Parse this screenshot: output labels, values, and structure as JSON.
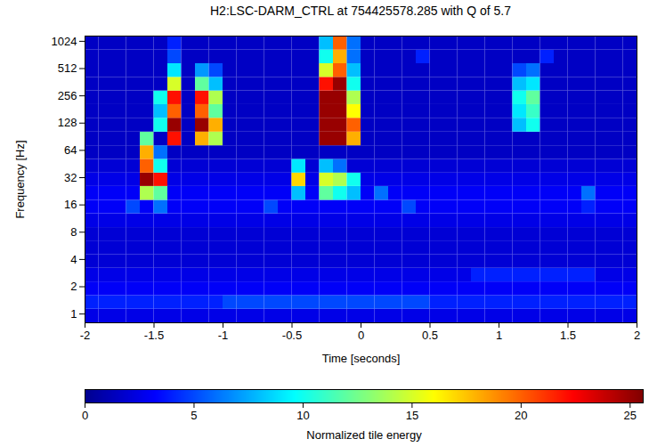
{
  "chart_data": {
    "type": "heatmap",
    "title": "H2:LSC-DARM_CTRL at 754425578.285 with Q of 5.7",
    "x_label": "Time [seconds]",
    "y_label": "Frequency [Hz]",
    "log": "y",
    "color": "jet",
    "xlim": [
      -2,
      2
    ],
    "xticks": [
      -2,
      -1.5,
      -1,
      -0.5,
      0,
      0.5,
      1,
      1.5,
      2
    ],
    "ylim": [
      0.8,
      1170
    ],
    "yticks": [
      1,
      2,
      4,
      8,
      16,
      32,
      64,
      128,
      256,
      512,
      1024
    ],
    "time_edges": [
      -2,
      -1.9,
      -1.8,
      -1.7,
      -1.6,
      -1.5,
      -1.4,
      -1.3,
      -1.2,
      -1.1,
      -1,
      -0.9,
      -0.8,
      -0.7,
      -0.6,
      -0.5,
      -0.4,
      -0.3,
      -0.2,
      -0.1,
      0,
      0.1,
      0.2,
      0.3,
      0.4,
      0.5,
      0.6,
      0.7,
      0.8,
      0.9,
      1,
      1.1,
      1.2,
      1.3,
      1.4,
      1.5,
      1.6,
      1.7,
      1.8,
      1.9,
      2
    ],
    "frequency_edges": [
      0.8,
      1.13,
      1.6,
      2.26,
      3.2,
      4.5,
      6.4,
      9,
      12.8,
      18,
      25.6,
      36,
      51,
      72,
      102,
      145,
      205,
      290,
      410,
      580,
      820,
      1170
    ],
    "energy": [
      [
        2.5,
        2.5,
        2.5,
        2.5,
        2.5,
        2.5,
        2.5,
        2.5,
        2.5,
        2.5,
        2.5,
        2.5,
        2.5,
        2.5,
        2.5,
        2.5,
        2.5,
        2.5,
        2.5,
        2.5,
        2.5,
        2.5,
        2.5,
        2.5,
        2.5,
        2.5,
        2.5,
        2.5,
        2.5,
        2.5,
        2.5,
        2.5,
        2.5,
        2.5,
        2.5,
        2.5,
        2.5,
        2.5,
        2.5,
        2.5
      ],
      [
        4,
        4,
        4,
        4,
        4,
        4,
        4,
        4,
        4,
        4,
        5,
        5,
        5,
        5,
        5,
        5,
        5,
        5,
        5,
        5,
        5,
        5,
        5,
        5,
        5,
        4,
        4,
        4,
        4,
        4,
        4,
        4,
        4,
        4,
        4,
        4,
        4,
        4,
        4,
        4
      ],
      [
        3,
        3,
        3,
        3,
        3,
        3,
        3,
        3,
        3,
        3,
        3,
        3,
        3,
        3,
        3,
        3,
        3,
        3,
        3,
        3,
        3,
        3,
        3,
        3,
        3,
        3,
        3,
        3,
        3,
        3,
        3,
        3,
        3,
        3,
        3,
        3,
        3,
        3,
        3,
        3
      ],
      [
        2.5,
        2.5,
        2.5,
        2.5,
        2.5,
        2.5,
        2.5,
        2.5,
        2.5,
        2.5,
        2.5,
        2.5,
        2.5,
        2.5,
        2.5,
        2.5,
        2.5,
        2.5,
        2.5,
        2.5,
        2.5,
        2.5,
        2.5,
        2.5,
        2.5,
        2.5,
        2.5,
        2.5,
        4,
        4,
        4,
        4,
        4,
        4,
        4,
        4,
        4,
        2.5,
        2.5,
        2.5
      ],
      [
        2,
        2,
        2,
        2,
        2,
        2,
        2,
        2,
        2,
        2,
        2,
        2,
        2,
        2,
        2,
        2,
        2,
        2,
        2,
        2,
        2,
        2,
        2,
        2,
        2,
        2,
        2,
        2,
        2,
        2,
        2,
        2,
        2,
        2,
        2,
        2,
        2,
        2,
        2,
        2
      ],
      [
        2,
        2,
        2,
        2,
        2,
        2,
        2,
        2,
        2,
        2,
        2,
        2,
        2,
        2,
        2,
        2,
        2,
        2,
        2,
        2,
        2,
        2,
        2,
        2,
        2,
        2,
        2,
        2,
        2,
        2,
        2,
        2,
        2,
        2,
        2,
        2,
        2,
        2,
        2,
        2
      ],
      [
        2,
        2,
        2,
        2,
        2,
        2,
        2,
        2,
        2,
        2,
        2,
        2,
        2,
        2,
        2,
        2,
        2,
        2,
        2,
        2,
        2,
        2,
        2,
        2,
        2,
        2,
        2,
        2,
        2,
        2,
        2,
        2,
        2,
        2,
        2,
        2,
        2,
        2,
        2,
        2
      ],
      [
        2.5,
        2.5,
        2.5,
        2.5,
        2.5,
        2.5,
        2.5,
        2.5,
        2.5,
        2.5,
        2.5,
        2.5,
        2.5,
        2.5,
        2.5,
        2.5,
        2.5,
        2.5,
        2.5,
        2.5,
        2.5,
        2.5,
        2.5,
        2.5,
        2.5,
        2.5,
        2.5,
        2.5,
        2.5,
        2.5,
        2.5,
        2.5,
        2.5,
        2.5,
        2.5,
        2.5,
        2.5,
        2.5,
        2.5,
        2.5
      ],
      [
        3,
        3,
        3,
        5,
        3,
        6,
        3,
        3,
        3,
        3,
        3,
        3,
        3,
        5,
        3,
        3,
        3,
        3,
        3,
        3,
        3,
        3,
        3,
        5,
        3,
        3,
        3,
        3,
        3,
        3,
        3,
        3,
        3,
        3,
        3,
        3,
        4,
        3,
        3,
        3
      ],
      [
        3,
        3,
        3,
        3,
        14,
        12,
        3,
        3,
        3,
        3,
        3,
        3,
        3,
        3,
        3,
        8,
        3,
        12,
        10,
        8,
        3,
        6,
        3,
        3,
        3,
        3,
        3,
        3,
        3,
        3,
        3,
        3,
        3,
        3,
        3,
        3,
        6,
        3,
        3,
        3
      ],
      [
        2.5,
        2.5,
        2.5,
        2.5,
        25,
        22,
        2.5,
        2.5,
        2.5,
        2.5,
        2.5,
        2.5,
        2.5,
        2.5,
        2.5,
        17,
        2.5,
        15,
        14,
        10,
        2.5,
        2.5,
        2.5,
        2.5,
        2.5,
        2.5,
        2.5,
        2.5,
        2.5,
        2.5,
        2.5,
        2.5,
        2.5,
        2.5,
        2.5,
        2.5,
        2.5,
        2.5,
        2.5,
        2.5
      ],
      [
        2,
        2,
        2,
        2,
        20,
        10,
        2,
        2,
        2,
        2,
        2,
        2,
        2,
        2,
        2,
        9,
        2,
        8,
        6,
        2,
        2,
        2,
        2,
        2,
        2,
        2,
        2,
        2,
        2,
        2,
        2,
        2,
        2,
        2,
        2,
        2,
        2,
        2,
        2,
        2
      ],
      [
        1.5,
        1.5,
        1.5,
        1.5,
        18,
        6,
        1.5,
        1.5,
        1.5,
        1.5,
        1.5,
        1.5,
        1.5,
        1.5,
        1.5,
        1.5,
        1.5,
        1.5,
        1.5,
        1.5,
        1.5,
        1.5,
        1.5,
        1.5,
        1.5,
        1.5,
        1.5,
        1.5,
        1.5,
        1.5,
        1.5,
        1.5,
        1.5,
        1.5,
        1.5,
        1.5,
        1.5,
        1.5,
        1.5,
        1.5
      ],
      [
        1.5,
        1.5,
        1.5,
        1.5,
        12,
        1.5,
        22,
        1.5,
        18,
        14,
        1.5,
        1.5,
        1.5,
        1.5,
        1.5,
        1.5,
        1.5,
        25,
        25,
        18,
        1.5,
        1.5,
        1.5,
        1.5,
        1.5,
        1.5,
        1.5,
        1.5,
        1.5,
        1.5,
        1.5,
        1.5,
        1.5,
        1.5,
        1.5,
        1.5,
        1.5,
        1.5,
        1.5,
        1.5
      ],
      [
        1.5,
        1.5,
        1.5,
        1.5,
        1.5,
        10,
        25,
        1.5,
        25,
        18,
        1.5,
        1.5,
        1.5,
        1.5,
        1.5,
        1.5,
        1.5,
        25,
        25,
        20,
        1.5,
        1.5,
        1.5,
        1.5,
        1.5,
        1.5,
        1.5,
        1.5,
        1.5,
        1.5,
        1.5,
        8,
        10,
        1.5,
        1.5,
        1.5,
        1.5,
        1.5,
        1.5,
        1.5
      ],
      [
        1.5,
        1.5,
        1.5,
        1.5,
        1.5,
        8,
        20,
        1.5,
        20,
        12,
        1.5,
        1.5,
        1.5,
        1.5,
        1.5,
        1.5,
        1.5,
        25,
        25,
        16,
        1.5,
        1.5,
        1.5,
        1.5,
        1.5,
        1.5,
        1.5,
        1.5,
        1.5,
        1.5,
        1.5,
        9,
        11,
        1.5,
        1.5,
        1.5,
        1.5,
        1.5,
        1.5,
        1.5
      ],
      [
        1.5,
        1.5,
        1.5,
        1.5,
        1.5,
        10,
        22,
        1.5,
        22,
        14,
        1.5,
        1.5,
        1.5,
        1.5,
        1.5,
        1.5,
        1.5,
        25,
        25,
        14,
        1.5,
        1.5,
        1.5,
        1.5,
        1.5,
        1.5,
        1.5,
        1.5,
        1.5,
        1.5,
        1.5,
        10,
        12,
        1.5,
        1.5,
        1.5,
        1.5,
        1.5,
        1.5,
        1.5
      ],
      [
        1.5,
        1.5,
        1.5,
        1.5,
        1.5,
        1.5,
        15,
        1.5,
        12,
        8,
        1.5,
        1.5,
        1.5,
        1.5,
        1.5,
        1.5,
        1.5,
        22,
        25,
        10,
        1.5,
        1.5,
        1.5,
        1.5,
        1.5,
        1.5,
        1.5,
        1.5,
        1.5,
        1.5,
        1.5,
        8,
        9,
        1.5,
        1.5,
        1.5,
        1.5,
        1.5,
        1.5,
        1.5
      ],
      [
        1.5,
        1.5,
        1.5,
        1.5,
        1.5,
        1.5,
        9,
        1.5,
        7,
        5,
        1.5,
        1.5,
        1.5,
        1.5,
        1.5,
        1.5,
        1.5,
        15,
        20,
        8,
        1.5,
        1.5,
        1.5,
        1.5,
        1.5,
        1.5,
        1.5,
        1.5,
        1.5,
        1.5,
        1.5,
        5,
        6,
        1.5,
        1.5,
        1.5,
        1.5,
        1.5,
        1.5,
        1.5
      ],
      [
        1.5,
        1.5,
        1.5,
        1.5,
        1.5,
        1.5,
        5,
        1.5,
        1.5,
        1.5,
        1.5,
        1.5,
        1.5,
        1.5,
        1.5,
        1.5,
        1.5,
        10,
        18,
        6,
        1.5,
        1.5,
        1.5,
        1.5,
        4,
        1.5,
        1.5,
        1.5,
        1.5,
        1.5,
        1.5,
        1.5,
        1.5,
        4,
        1.5,
        1.5,
        1.5,
        1.5,
        1.5,
        1.5
      ],
      [
        1.5,
        1.5,
        1.5,
        1.5,
        1.5,
        1.5,
        4,
        1.5,
        1.5,
        1.5,
        1.5,
        1.5,
        1.5,
        1.5,
        1.5,
        1.5,
        1.5,
        8,
        20,
        6,
        1.5,
        1.5,
        1.5,
        1.5,
        1.5,
        1.5,
        1.5,
        1.5,
        1.5,
        1.5,
        1.5,
        1.5,
        1.5,
        1.5,
        1.5,
        1.5,
        1.5,
        1.5,
        1.5,
        1.5
      ]
    ],
    "colorbar": {
      "label": "Normalized tile energy",
      "lim": [
        0,
        25.6
      ],
      "ticks": [
        0,
        5,
        10,
        15,
        20,
        25
      ]
    }
  }
}
